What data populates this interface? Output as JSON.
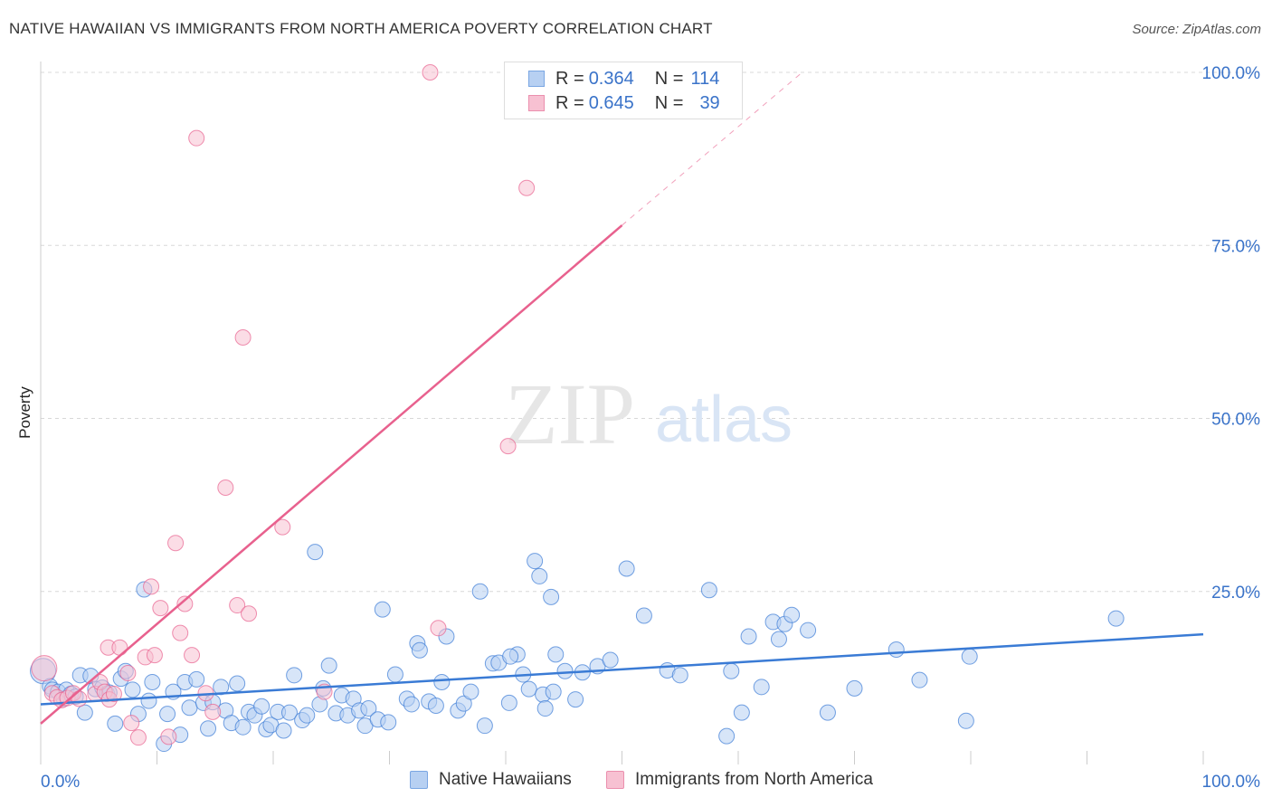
{
  "header": {
    "title": "NATIVE HAWAIIAN VS IMMIGRANTS FROM NORTH AMERICA POVERTY CORRELATION CHART",
    "source": "Source: ZipAtlas.com"
  },
  "watermark": {
    "zip": "ZIP",
    "atlas": "atlas"
  },
  "legend": {
    "rows": [
      {
        "r_label": "R =",
        "r_value": "0.364",
        "n_label": "N =",
        "n_value": "114"
      },
      {
        "r_label": "R =",
        "r_value": "0.645",
        "n_label": "N =",
        "n_value": "39"
      }
    ]
  },
  "colors": {
    "blue": "#3a7bd5",
    "blue_fill": "#b7d0f2",
    "pink": "#e8618e",
    "pink_fill": "#f7c1d2",
    "grid": "#d8d8d8",
    "tick_label": "#3a73c9"
  },
  "chart_data": {
    "type": "scatter",
    "title": "NATIVE HAWAIIAN VS IMMIGRANTS FROM NORTH AMERICA POVERTY CORRELATION CHART",
    "xlabel": "",
    "ylabel": "Poverty",
    "xlim": [
      0,
      100
    ],
    "ylim": [
      0,
      100
    ],
    "x_tick_labels": [
      "0.0%",
      "100.0%"
    ],
    "y_tick_labels": [
      "100.0%",
      "75.0%",
      "50.0%",
      "25.0%"
    ],
    "y_ticks": [
      100,
      75,
      50,
      25
    ],
    "grid": true,
    "legend_position": "top-center",
    "series": [
      {
        "name": "Native Hawaiians",
        "color": "#3a7bd5",
        "fill": "#b7d0f2",
        "r": 0.364,
        "n": 114,
        "trend": {
          "x0": 0,
          "y0": 8.7,
          "x1": 100,
          "y1": 18.8
        },
        "points": [
          [
            0.2,
            13.5
          ],
          [
            0.8,
            11.3
          ],
          [
            1.0,
            10.8
          ],
          [
            1.5,
            10.5
          ],
          [
            2.0,
            9.5
          ],
          [
            2.2,
            10.8
          ],
          [
            2.6,
            10.2
          ],
          [
            3.0,
            9.8
          ],
          [
            3.4,
            12.9
          ],
          [
            3.8,
            7.5
          ],
          [
            4.3,
            12.8
          ],
          [
            4.7,
            10.9
          ],
          [
            5.3,
            11.1
          ],
          [
            5.7,
            10.2
          ],
          [
            6.4,
            5.9
          ],
          [
            6.9,
            12.4
          ],
          [
            7.3,
            13.5
          ],
          [
            7.9,
            10.8
          ],
          [
            8.4,
            7.3
          ],
          [
            8.9,
            25.3
          ],
          [
            9.3,
            9.2
          ],
          [
            9.6,
            11.9
          ],
          [
            10.6,
            3.0
          ],
          [
            10.9,
            7.3
          ],
          [
            11.4,
            10.5
          ],
          [
            12.0,
            4.3
          ],
          [
            12.4,
            11.9
          ],
          [
            12.8,
            8.2
          ],
          [
            13.4,
            12.3
          ],
          [
            14.0,
            8.9
          ],
          [
            14.4,
            5.2
          ],
          [
            14.8,
            9.0
          ],
          [
            15.5,
            11.2
          ],
          [
            15.9,
            7.8
          ],
          [
            16.4,
            6.0
          ],
          [
            16.9,
            11.7
          ],
          [
            17.4,
            5.4
          ],
          [
            17.9,
            7.6
          ],
          [
            18.4,
            7.1
          ],
          [
            19.0,
            8.4
          ],
          [
            19.4,
            5.1
          ],
          [
            19.8,
            5.7
          ],
          [
            20.4,
            7.6
          ],
          [
            20.9,
            4.9
          ],
          [
            21.4,
            7.5
          ],
          [
            21.8,
            12.9
          ],
          [
            22.5,
            6.4
          ],
          [
            22.9,
            7.1
          ],
          [
            23.6,
            30.7
          ],
          [
            24.0,
            8.7
          ],
          [
            24.3,
            11.0
          ],
          [
            24.8,
            14.3
          ],
          [
            25.4,
            7.4
          ],
          [
            25.9,
            10.0
          ],
          [
            26.4,
            7.1
          ],
          [
            26.9,
            9.5
          ],
          [
            27.4,
            7.8
          ],
          [
            27.9,
            5.6
          ],
          [
            28.2,
            8.1
          ],
          [
            29.0,
            6.5
          ],
          [
            29.4,
            22.4
          ],
          [
            29.9,
            6.1
          ],
          [
            30.5,
            13.0
          ],
          [
            31.5,
            9.5
          ],
          [
            31.9,
            8.7
          ],
          [
            32.4,
            17.5
          ],
          [
            32.6,
            16.5
          ],
          [
            33.4,
            9.1
          ],
          [
            34.0,
            8.5
          ],
          [
            34.5,
            11.9
          ],
          [
            34.9,
            18.5
          ],
          [
            35.9,
            7.8
          ],
          [
            36.4,
            8.8
          ],
          [
            37.0,
            10.5
          ],
          [
            37.8,
            25.0
          ],
          [
            38.2,
            5.6
          ],
          [
            38.9,
            14.6
          ],
          [
            39.4,
            14.7
          ],
          [
            40.3,
            8.9
          ],
          [
            41.0,
            15.9
          ],
          [
            41.5,
            13.0
          ],
          [
            42.0,
            10.9
          ],
          [
            42.5,
            29.4
          ],
          [
            42.9,
            27.2
          ],
          [
            43.2,
            10.1
          ],
          [
            43.4,
            8.1
          ],
          [
            43.9,
            24.2
          ],
          [
            44.1,
            10.5
          ],
          [
            44.3,
            15.9
          ],
          [
            45.1,
            13.5
          ],
          [
            46.0,
            9.4
          ],
          [
            46.6,
            13.3
          ],
          [
            47.9,
            14.2
          ],
          [
            49.0,
            15.1
          ],
          [
            50.4,
            28.3
          ],
          [
            51.9,
            21.5
          ],
          [
            53.9,
            13.6
          ],
          [
            55.0,
            12.9
          ],
          [
            57.5,
            25.2
          ],
          [
            59.4,
            13.5
          ],
          [
            60.3,
            7.5
          ],
          [
            60.9,
            18.5
          ],
          [
            62.0,
            11.2
          ],
          [
            63.0,
            20.6
          ],
          [
            63.5,
            18.1
          ],
          [
            64.0,
            20.3
          ],
          [
            64.6,
            21.6
          ],
          [
            66.0,
            19.4
          ],
          [
            67.7,
            7.5
          ],
          [
            70.0,
            11.0
          ],
          [
            73.6,
            16.6
          ],
          [
            75.6,
            12.2
          ],
          [
            79.9,
            15.6
          ],
          [
            79.6,
            6.3
          ],
          [
            92.5,
            21.1
          ],
          [
            59.0,
            4.1
          ],
          [
            5.9,
            10.4
          ],
          [
            40.4,
            15.6
          ]
        ]
      },
      {
        "name": "Immigrants from North America",
        "color": "#e8618e",
        "fill": "#f7c1d2",
        "r": 0.645,
        "n": 39,
        "trend": {
          "x0": 0,
          "y0": 5.9,
          "x1": 50,
          "y1": 77.9
        },
        "trend_dashed": {
          "x0": 50,
          "y0": 77.9,
          "x1": 65.5,
          "y1": 100
        },
        "points": [
          [
            0.3,
            13.9
          ],
          [
            1.0,
            10.3
          ],
          [
            1.4,
            9.7
          ],
          [
            1.8,
            9.3
          ],
          [
            2.3,
            9.6
          ],
          [
            2.8,
            10.3
          ],
          [
            3.3,
            9.5
          ],
          [
            4.7,
            10.2
          ],
          [
            5.1,
            11.9
          ],
          [
            5.5,
            10.5
          ],
          [
            5.9,
            9.4
          ],
          [
            6.3,
            10.2
          ],
          [
            5.8,
            16.9
          ],
          [
            6.8,
            16.9
          ],
          [
            7.5,
            13.2
          ],
          [
            7.8,
            6.0
          ],
          [
            8.4,
            3.9
          ],
          [
            9.0,
            15.5
          ],
          [
            9.5,
            25.7
          ],
          [
            9.8,
            15.8
          ],
          [
            10.3,
            22.6
          ],
          [
            11.0,
            4.0
          ],
          [
            11.6,
            32.0
          ],
          [
            12.0,
            19.0
          ],
          [
            12.4,
            23.2
          ],
          [
            13.0,
            15.8
          ],
          [
            13.4,
            90.5
          ],
          [
            14.2,
            10.3
          ],
          [
            14.8,
            7.6
          ],
          [
            15.9,
            40.0
          ],
          [
            16.9,
            23.0
          ],
          [
            17.4,
            61.7
          ],
          [
            17.9,
            21.8
          ],
          [
            20.8,
            34.3
          ],
          [
            24.4,
            10.5
          ],
          [
            33.5,
            100.0
          ],
          [
            34.2,
            19.7
          ],
          [
            40.2,
            46.0
          ],
          [
            41.8,
            83.3
          ]
        ]
      }
    ]
  },
  "bottom_legend": {
    "items": [
      {
        "label": "Native Hawaiians"
      },
      {
        "label": "Immigrants from North America"
      }
    ]
  }
}
